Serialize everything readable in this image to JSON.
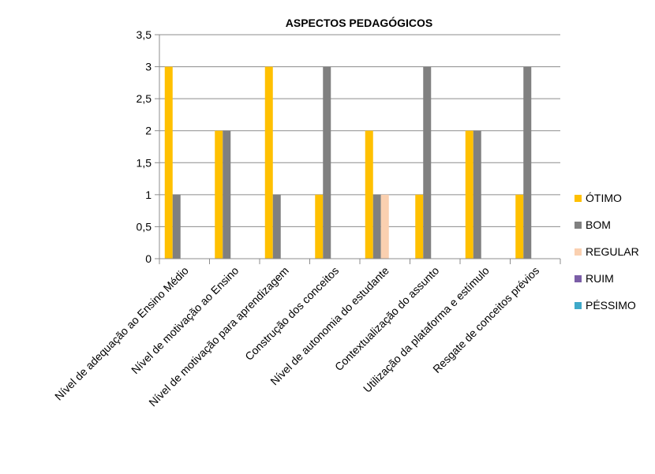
{
  "chart_data": {
    "type": "bar",
    "title": "ASPECTOS PEDAGÓGICOS",
    "xlabel": "",
    "ylabel": "",
    "ylim": [
      0,
      3.5
    ],
    "yticks": [
      "0",
      "0,5",
      "1",
      "1,5",
      "2",
      "2,5",
      "3",
      "3,5"
    ],
    "grid": true,
    "legend_position": "right",
    "categories": [
      "Nível de adequação ao Ensino Médio",
      "Nível de motivação ao Ensino",
      "Nível de motivação para aprendizagem",
      "Construção dos conceitos",
      "Nível de autonomia do estudante",
      "Contextualização do assunto",
      "Utilização da plataforma e estímulo",
      "Resgate de conceitos prévios"
    ],
    "series": [
      {
        "name": "ÓTIMO",
        "color": "#FFC000",
        "values": [
          3,
          2,
          3,
          1,
          2,
          1,
          2,
          1
        ]
      },
      {
        "name": "BOM",
        "color": "#808080",
        "values": [
          1,
          2,
          1,
          3,
          1,
          3,
          2,
          3
        ]
      },
      {
        "name": "REGULAR",
        "color": "#FAD0B0",
        "values": [
          0,
          0,
          0,
          0,
          1,
          0,
          0,
          0
        ]
      },
      {
        "name": "RUIM",
        "color": "#7B5EA7",
        "values": [
          0,
          0,
          0,
          0,
          0,
          0,
          0,
          0
        ]
      },
      {
        "name": "PÉSSIMO",
        "color": "#3FA9C9",
        "values": [
          0,
          0,
          0,
          0,
          0,
          0,
          0,
          0
        ]
      }
    ]
  }
}
